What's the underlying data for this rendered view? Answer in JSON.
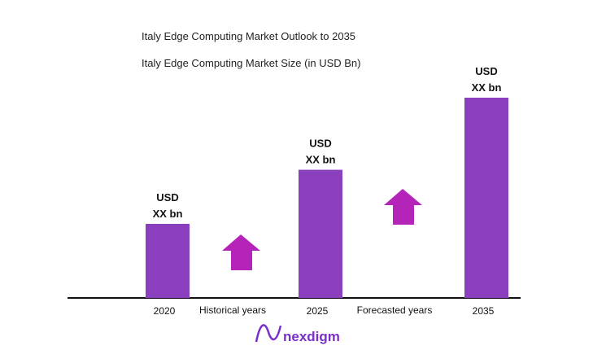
{
  "chart_data": {
    "type": "bar",
    "title": "Italy Edge Computing Market Outlook to 2035",
    "subtitle": "Italy Edge Computing Market Size (in USD Bn)",
    "categories": [
      "2020",
      "2025",
      "2035"
    ],
    "values": [
      0.37,
      0.64,
      1.0
    ],
    "data_labels": [
      [
        "USD",
        "XX bn"
      ],
      [
        "USD",
        "XX bn"
      ],
      [
        "USD",
        "XX bn"
      ]
    ],
    "annotations": [
      "Historical years",
      "Forecasted years"
    ],
    "grid": false,
    "bar_color": "#8a3fbf",
    "arrow_color": "#b524b8"
  },
  "brand": {
    "name": "nexdigm",
    "color": "#7a2fc8"
  }
}
